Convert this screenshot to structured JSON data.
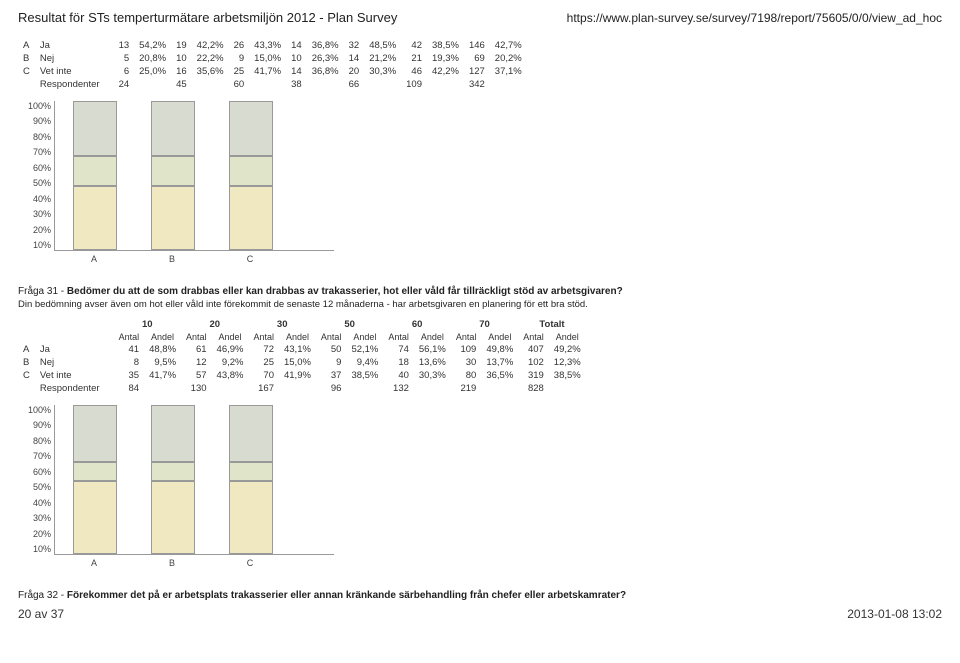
{
  "header": {
    "title": "Resultat för STs temperturmätare arbetsmiljön 2012 - Plan Survey",
    "url": "https://www.plan-survey.se/survey/7198/report/75605/0/0/view_ad_hoc"
  },
  "colors": {
    "bar_a": "#f0e8c0",
    "bar_b": "#e0e4c8",
    "bar_c": "#d8dcd0",
    "border": "#999999",
    "bg": "#ffffff"
  },
  "table1": {
    "rows": [
      {
        "letter": "A",
        "label": "Ja",
        "cells": [
          [
            "13",
            "54,2%"
          ],
          [
            "19",
            "42,2%"
          ],
          [
            "26",
            "43,3%"
          ],
          [
            "14",
            "36,8%"
          ],
          [
            "32",
            "48,5%"
          ],
          [
            "42",
            "38,5%"
          ],
          [
            "146",
            "42,7%"
          ]
        ]
      },
      {
        "letter": "B",
        "label": "Nej",
        "cells": [
          [
            "5",
            "20,8%"
          ],
          [
            "10",
            "22,2%"
          ],
          [
            "9",
            "15,0%"
          ],
          [
            "10",
            "26,3%"
          ],
          [
            "14",
            "21,2%"
          ],
          [
            "21",
            "19,3%"
          ],
          [
            "69",
            "20,2%"
          ]
        ]
      },
      {
        "letter": "C",
        "label": "Vet inte",
        "cells": [
          [
            "6",
            "25,0%"
          ],
          [
            "16",
            "35,6%"
          ],
          [
            "25",
            "41,7%"
          ],
          [
            "14",
            "36,8%"
          ],
          [
            "20",
            "30,3%"
          ],
          [
            "46",
            "42,2%"
          ],
          [
            "127",
            "37,1%"
          ]
        ]
      },
      {
        "letter": "",
        "label": "Respondenter",
        "cells": [
          [
            "24",
            ""
          ],
          [
            "45",
            ""
          ],
          [
            "60",
            ""
          ],
          [
            "38",
            ""
          ],
          [
            "66",
            ""
          ],
          [
            "109",
            ""
          ],
          [
            "342",
            ""
          ]
        ]
      }
    ]
  },
  "chart1": {
    "ylabels": [
      "100%",
      "90%",
      "80%",
      "70%",
      "60%",
      "50%",
      "40%",
      "30%",
      "20%",
      "10%"
    ],
    "xlabels": [
      "A",
      "B",
      "C"
    ],
    "stacks": [
      [
        42.7,
        20.2,
        37.1
      ]
    ],
    "colors": [
      "#f0e8c0",
      "#e0e4c8",
      "#d8dcd0"
    ]
  },
  "question31": {
    "prefix": "Fråga 31 - ",
    "bold": "Bedömer du att de som drabbas eller kan drabbas av trakasserier, hot eller våld får tillräckligt stöd av arbetsgivaren?",
    "subnote": "Din bedömning avser även om hot eller våld inte förekommit de senaste 12 månaderna - har arbetsgivaren en planering för ett bra stöd."
  },
  "table2": {
    "groups": [
      "10",
      "20",
      "30",
      "50",
      "60",
      "70",
      "Totalt"
    ],
    "subs": [
      "Antal",
      "Andel"
    ],
    "rows": [
      {
        "letter": "A",
        "label": "Ja",
        "cells": [
          [
            "41",
            "48,8%"
          ],
          [
            "61",
            "46,9%"
          ],
          [
            "72",
            "43,1%"
          ],
          [
            "50",
            "52,1%"
          ],
          [
            "74",
            "56,1%"
          ],
          [
            "109",
            "49,8%"
          ],
          [
            "407",
            "49,2%"
          ]
        ]
      },
      {
        "letter": "B",
        "label": "Nej",
        "cells": [
          [
            "8",
            "9,5%"
          ],
          [
            "12",
            "9,2%"
          ],
          [
            "25",
            "15,0%"
          ],
          [
            "9",
            "9,4%"
          ],
          [
            "18",
            "13,6%"
          ],
          [
            "30",
            "13,7%"
          ],
          [
            "102",
            "12,3%"
          ]
        ]
      },
      {
        "letter": "C",
        "label": "Vet inte",
        "cells": [
          [
            "35",
            "41,7%"
          ],
          [
            "57",
            "43,8%"
          ],
          [
            "70",
            "41,9%"
          ],
          [
            "37",
            "38,5%"
          ],
          [
            "40",
            "30,3%"
          ],
          [
            "80",
            "36,5%"
          ],
          [
            "319",
            "38,5%"
          ]
        ]
      },
      {
        "letter": "",
        "label": "Respondenter",
        "cells": [
          [
            "84",
            ""
          ],
          [
            "130",
            ""
          ],
          [
            "167",
            ""
          ],
          [
            "96",
            ""
          ],
          [
            "132",
            ""
          ],
          [
            "219",
            ""
          ],
          [
            "828",
            ""
          ]
        ]
      }
    ]
  },
  "chart2": {
    "ylabels": [
      "100%",
      "90%",
      "80%",
      "70%",
      "60%",
      "50%",
      "40%",
      "30%",
      "20%",
      "10%"
    ],
    "xlabels": [
      "A",
      "B",
      "C"
    ],
    "stacks": [
      [
        49.2,
        12.3,
        38.5
      ]
    ]
  },
  "question32": {
    "prefix": "Fråga 32 - ",
    "bold": "Förekommer det på er arbetsplats trakasserier eller annan kränkande särbehandling från chefer eller arbetskamrater?"
  },
  "footer": {
    "left": "20 av 37",
    "right": "2013-01-08 13:02"
  }
}
